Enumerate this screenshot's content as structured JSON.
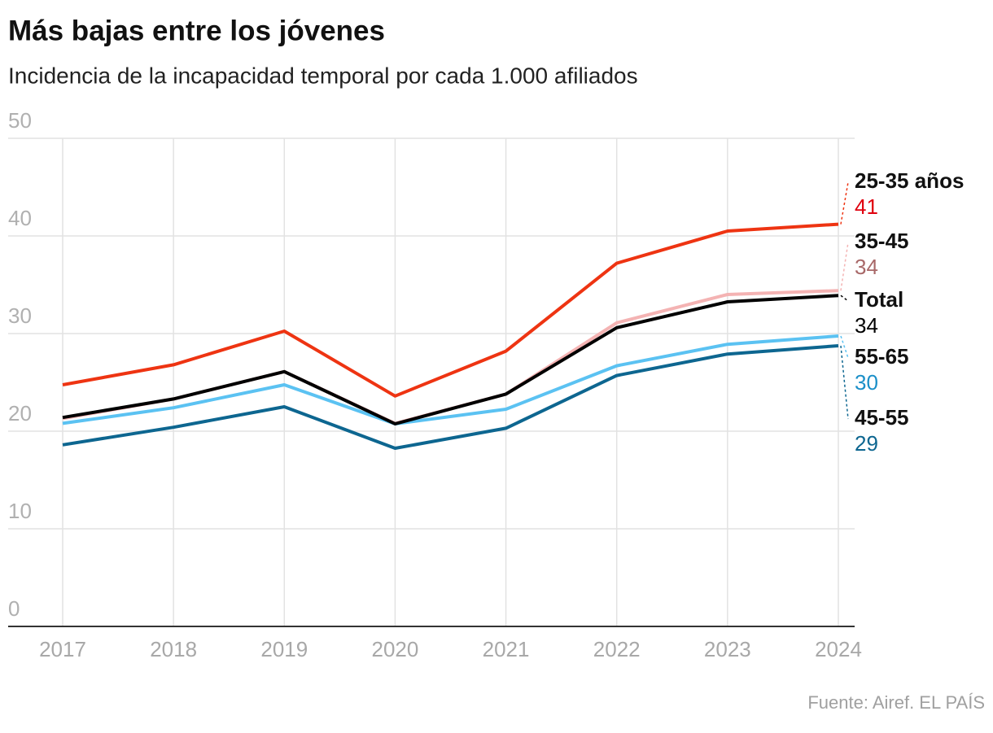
{
  "chart_data": {
    "type": "line",
    "title": "Más bajas entre los jóvenes",
    "subtitle": "Incidencia de la incapacidad temporal por cada 1.000 afiliados",
    "source": "Fuente: Airef. EL PAÍS",
    "categories": [
      "2017",
      "2018",
      "2019",
      "2020",
      "2021",
      "2022",
      "2023",
      "2024"
    ],
    "ylim": [
      0,
      50
    ],
    "yticks": [
      0,
      10,
      20,
      30,
      40,
      50
    ],
    "grid": true,
    "series": [
      {
        "name": "25-35 años",
        "color": "#ee3412",
        "label_color": "#e0000f",
        "values": [
          24.75,
          26.8,
          30.25,
          23.6,
          28.2,
          37.2,
          40.5,
          41.2
        ],
        "value_labels": [
          null,
          null,
          null,
          null,
          null,
          null,
          null,
          "41"
        ]
      },
      {
        "name": "35-45",
        "color": "#f4b3b3",
        "label_color": "#a86868",
        "values": [
          21.3,
          23.3,
          26.1,
          20.8,
          23.8,
          31.1,
          34.0,
          34.4
        ],
        "value_labels": [
          null,
          null,
          null,
          null,
          null,
          null,
          null,
          "34"
        ]
      },
      {
        "name": "Total",
        "color": "#000000",
        "label_color": "#000000",
        "values": [
          21.4,
          23.3,
          26.1,
          20.75,
          23.8,
          30.6,
          33.25,
          33.9
        ],
        "value_labels": [
          null,
          null,
          null,
          null,
          null,
          null,
          null,
          "34"
        ]
      },
      {
        "name": "55-65",
        "color": "#5bc2f2",
        "label_color": "#1a8fc8",
        "values": [
          20.8,
          22.4,
          24.75,
          20.75,
          22.25,
          26.7,
          28.9,
          29.75
        ],
        "value_labels": [
          null,
          null,
          null,
          null,
          null,
          null,
          null,
          "30"
        ]
      },
      {
        "name": "45-55",
        "color": "#0d6690",
        "label_color": "#0d6690",
        "values": [
          18.6,
          20.4,
          22.5,
          18.25,
          20.3,
          25.7,
          27.9,
          28.75
        ],
        "value_labels": [
          null,
          null,
          null,
          null,
          null,
          null,
          null,
          "29"
        ]
      }
    ]
  }
}
